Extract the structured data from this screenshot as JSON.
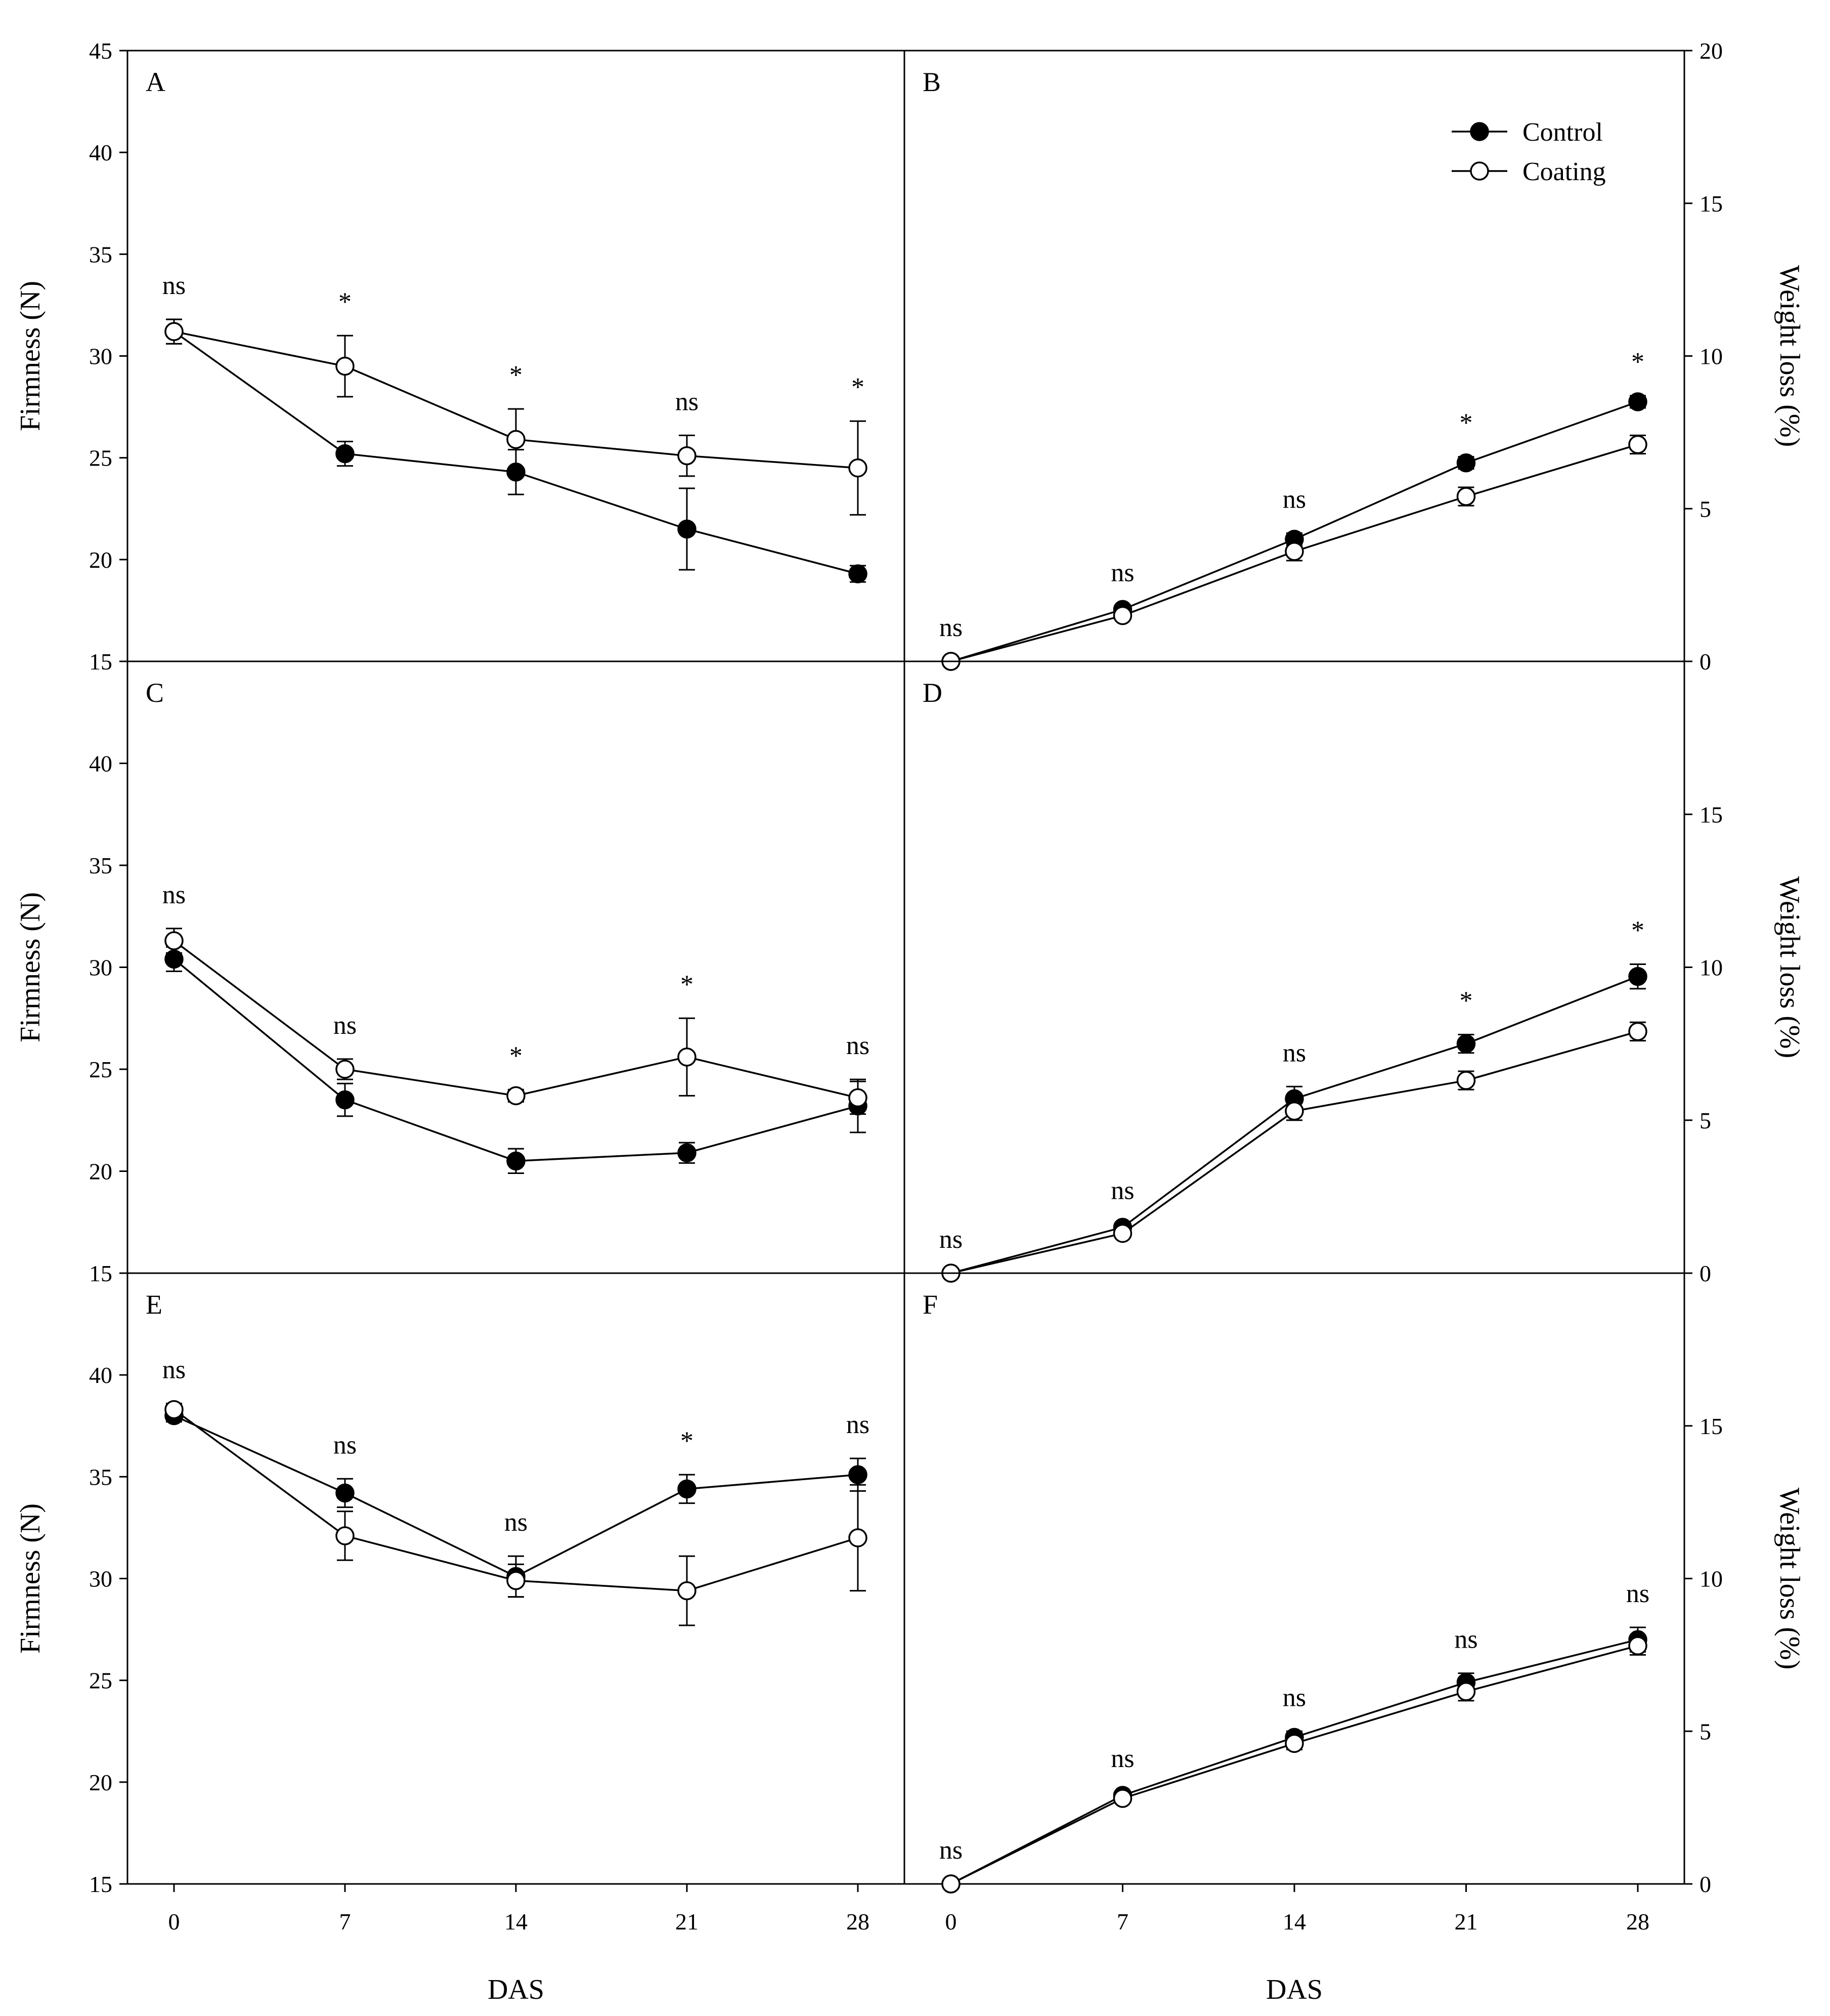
{
  "chart_data": [
    {
      "panel": "A",
      "type": "line",
      "ylabel": "Firmness (N)",
      "xlabel": "",
      "ylim": [
        15,
        45
      ],
      "yticks": [
        15,
        20,
        25,
        30,
        35,
        40,
        45
      ],
      "x": [
        0,
        7,
        14,
        21,
        28
      ],
      "series": [
        {
          "name": "Control",
          "marker": "filled",
          "values": [
            31.2,
            25.2,
            24.3,
            21.5,
            19.3
          ],
          "errors": [
            0.6,
            0.6,
            1.1,
            2.0,
            0.4
          ]
        },
        {
          "name": "Coating",
          "marker": "open",
          "values": [
            31.2,
            29.5,
            25.9,
            25.1,
            24.5
          ],
          "errors": [
            0.6,
            1.5,
            1.5,
            1.0,
            2.3
          ]
        }
      ],
      "significance": [
        "ns",
        "*",
        "*",
        "ns",
        "*"
      ]
    },
    {
      "panel": "B",
      "type": "line",
      "ylabel": "Weight loss (%)",
      "xlabel": "",
      "ylim": [
        0,
        20
      ],
      "yticks": [
        0,
        5,
        10,
        15,
        20
      ],
      "x": [
        0,
        7,
        14,
        21,
        28
      ],
      "series": [
        {
          "name": "Control",
          "marker": "filled",
          "values": [
            0,
            1.7,
            4.0,
            6.5,
            8.5
          ],
          "errors": [
            0,
            0.1,
            0.2,
            0.2,
            0.2
          ]
        },
        {
          "name": "Coating",
          "marker": "open",
          "values": [
            0,
            1.5,
            3.6,
            5.4,
            7.1
          ],
          "errors": [
            0,
            0.1,
            0.3,
            0.3,
            0.3
          ]
        }
      ],
      "significance": [
        "ns",
        "ns",
        "ns",
        "*",
        "*"
      ],
      "legend": {
        "position": "top-right",
        "entries": [
          "Control",
          "Coating"
        ]
      }
    },
    {
      "panel": "C",
      "type": "line",
      "ylabel": "Firmness (N)",
      "xlabel": "",
      "ylim": [
        15,
        45
      ],
      "yticks": [
        15,
        20,
        25,
        30,
        35,
        40
      ],
      "x": [
        0,
        7,
        14,
        21,
        28
      ],
      "series": [
        {
          "name": "Control",
          "marker": "filled",
          "values": [
            30.4,
            23.5,
            20.5,
            20.9,
            23.2
          ],
          "errors": [
            0.6,
            0.8,
            0.6,
            0.5,
            1.3
          ]
        },
        {
          "name": "Coating",
          "marker": "open",
          "values": [
            31.3,
            25.0,
            23.7,
            25.6,
            23.6
          ],
          "errors": [
            0.6,
            0.5,
            0.3,
            1.9,
            0.8
          ]
        }
      ],
      "significance": [
        "ns",
        "ns",
        "*",
        "*",
        "ns"
      ]
    },
    {
      "panel": "D",
      "type": "line",
      "ylabel": "Weight loss (%)",
      "xlabel": "",
      "ylim": [
        0,
        20
      ],
      "yticks": [
        0,
        5,
        10,
        15
      ],
      "x": [
        0,
        7,
        14,
        21,
        28
      ],
      "series": [
        {
          "name": "Control",
          "marker": "filled",
          "values": [
            0,
            1.5,
            5.7,
            7.5,
            9.7
          ],
          "errors": [
            0,
            0.1,
            0.4,
            0.3,
            0.4
          ]
        },
        {
          "name": "Coating",
          "marker": "open",
          "values": [
            0,
            1.3,
            5.3,
            6.3,
            7.9
          ],
          "errors": [
            0,
            0.1,
            0.3,
            0.3,
            0.3
          ]
        }
      ],
      "significance": [
        "ns",
        "ns",
        "ns",
        "*",
        "*"
      ]
    },
    {
      "panel": "E",
      "type": "line",
      "ylabel": "Firmness (N)",
      "xlabel": "DAS",
      "ylim": [
        15,
        45
      ],
      "yticks": [
        15,
        20,
        25,
        30,
        35,
        40
      ],
      "x": [
        0,
        7,
        14,
        21,
        28
      ],
      "series": [
        {
          "name": "Control",
          "marker": "filled",
          "values": [
            38.0,
            34.2,
            30.1,
            34.4,
            35.1
          ],
          "errors": [
            0.3,
            0.7,
            1.0,
            0.7,
            0.8
          ]
        },
        {
          "name": "Coating",
          "marker": "open",
          "values": [
            38.3,
            32.1,
            29.9,
            29.4,
            32.0
          ],
          "errors": [
            0.3,
            1.2,
            0.8,
            1.7,
            2.6
          ]
        }
      ],
      "significance": [
        "ns",
        "ns",
        "ns",
        "*",
        "ns"
      ]
    },
    {
      "panel": "F",
      "type": "line",
      "ylabel": "Weight loss (%)",
      "xlabel": "DAS",
      "ylim": [
        0,
        20
      ],
      "yticks": [
        0,
        5,
        10,
        15
      ],
      "x": [
        0,
        7,
        14,
        21,
        28
      ],
      "series": [
        {
          "name": "Control",
          "marker": "filled",
          "values": [
            0,
            2.9,
            4.8,
            6.6,
            8.0
          ],
          "errors": [
            0,
            0.1,
            0.2,
            0.3,
            0.4
          ]
        },
        {
          "name": "Coating",
          "marker": "open",
          "values": [
            0,
            2.8,
            4.6,
            6.3,
            7.8
          ],
          "errors": [
            0,
            0.1,
            0.2,
            0.3,
            0.3
          ]
        }
      ],
      "significance": [
        "ns",
        "ns",
        "ns",
        "ns",
        "ns"
      ]
    }
  ],
  "colors": {
    "axis": "#000000",
    "filled_marker": "#000000",
    "open_marker": "#ffffff"
  }
}
